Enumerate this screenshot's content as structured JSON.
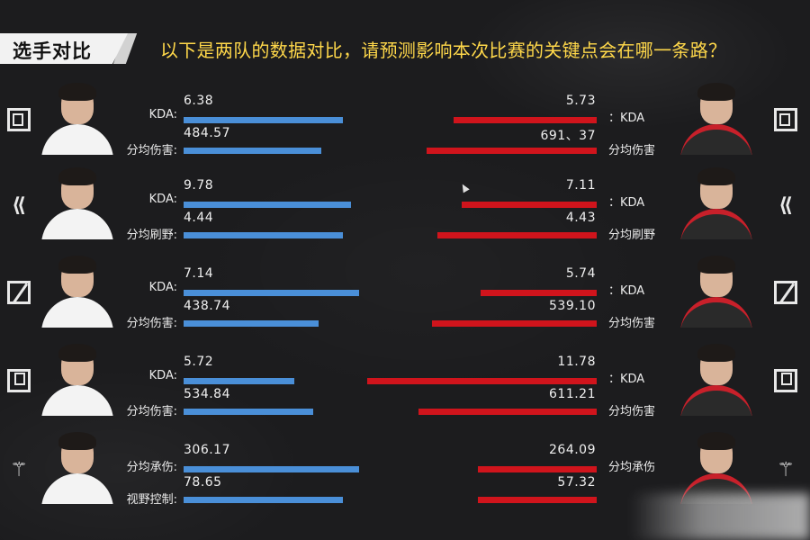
{
  "header": {
    "title": "选手对比",
    "question": "以下是两队的数据对比，请预测影响本次比赛的关键点会在哪一条路？"
  },
  "colors": {
    "team_left": "#4a8fd8",
    "team_right": "#d0141c",
    "question": "#ffd84a"
  },
  "rows": [
    {
      "role_icon": "top-lane-icon",
      "stats": [
        {
          "left_label": "KDA:",
          "left_value": "6.38",
          "left_fill": 0.59,
          "right_label": "：KDA",
          "right_value": "5.73",
          "right_fill": 0.53
        },
        {
          "left_label": "分均伤害:",
          "left_value": "484.57",
          "left_fill": 0.51,
          "right_label": "分均伤害",
          "right_value": "691、37",
          "right_fill": 0.63
        }
      ]
    },
    {
      "role_icon": "jungle-icon",
      "stats": [
        {
          "left_label": "KDA:",
          "left_value": "9.78",
          "left_fill": 0.62,
          "right_label": "：KDA",
          "right_value": "7.11",
          "right_fill": 0.5
        },
        {
          "left_label": "分均刷野:",
          "left_value": "4.44",
          "left_fill": 0.59,
          "right_label": "分均刷野",
          "right_value": "4.43",
          "right_fill": 0.59
        }
      ]
    },
    {
      "role_icon": "mid-lane-icon",
      "stats": [
        {
          "left_label": "KDA:",
          "left_value": "7.14",
          "left_fill": 0.65,
          "right_label": "：KDA",
          "right_value": "5.74",
          "right_fill": 0.43
        },
        {
          "left_label": "分均伤害:",
          "left_value": "438.74",
          "left_fill": 0.5,
          "right_label": "分均伤害",
          "right_value": "539.10",
          "right_fill": 0.61
        }
      ]
    },
    {
      "role_icon": "bot-lane-icon",
      "stats": [
        {
          "left_label": "KDA:",
          "left_value": "5.72",
          "left_fill": 0.41,
          "right_label": "：KDA",
          "right_value": "11.78",
          "right_fill": 0.85
        },
        {
          "left_label": "分均伤害:",
          "left_value": "534.84",
          "left_fill": 0.48,
          "right_label": "分均伤害",
          "right_value": "611.21",
          "right_fill": 0.66
        }
      ]
    },
    {
      "role_icon": "support-icon",
      "stats": [
        {
          "left_label": "分均承伤:",
          "left_value": "306.17",
          "left_fill": 0.65,
          "right_label": "分均承伤",
          "right_value": "264.09",
          "right_fill": 0.44
        },
        {
          "left_label": "视野控制:",
          "left_value": "78.65",
          "left_fill": 0.59,
          "right_label": "",
          "right_value": "57.32",
          "right_fill": 0.44
        }
      ]
    }
  ]
}
